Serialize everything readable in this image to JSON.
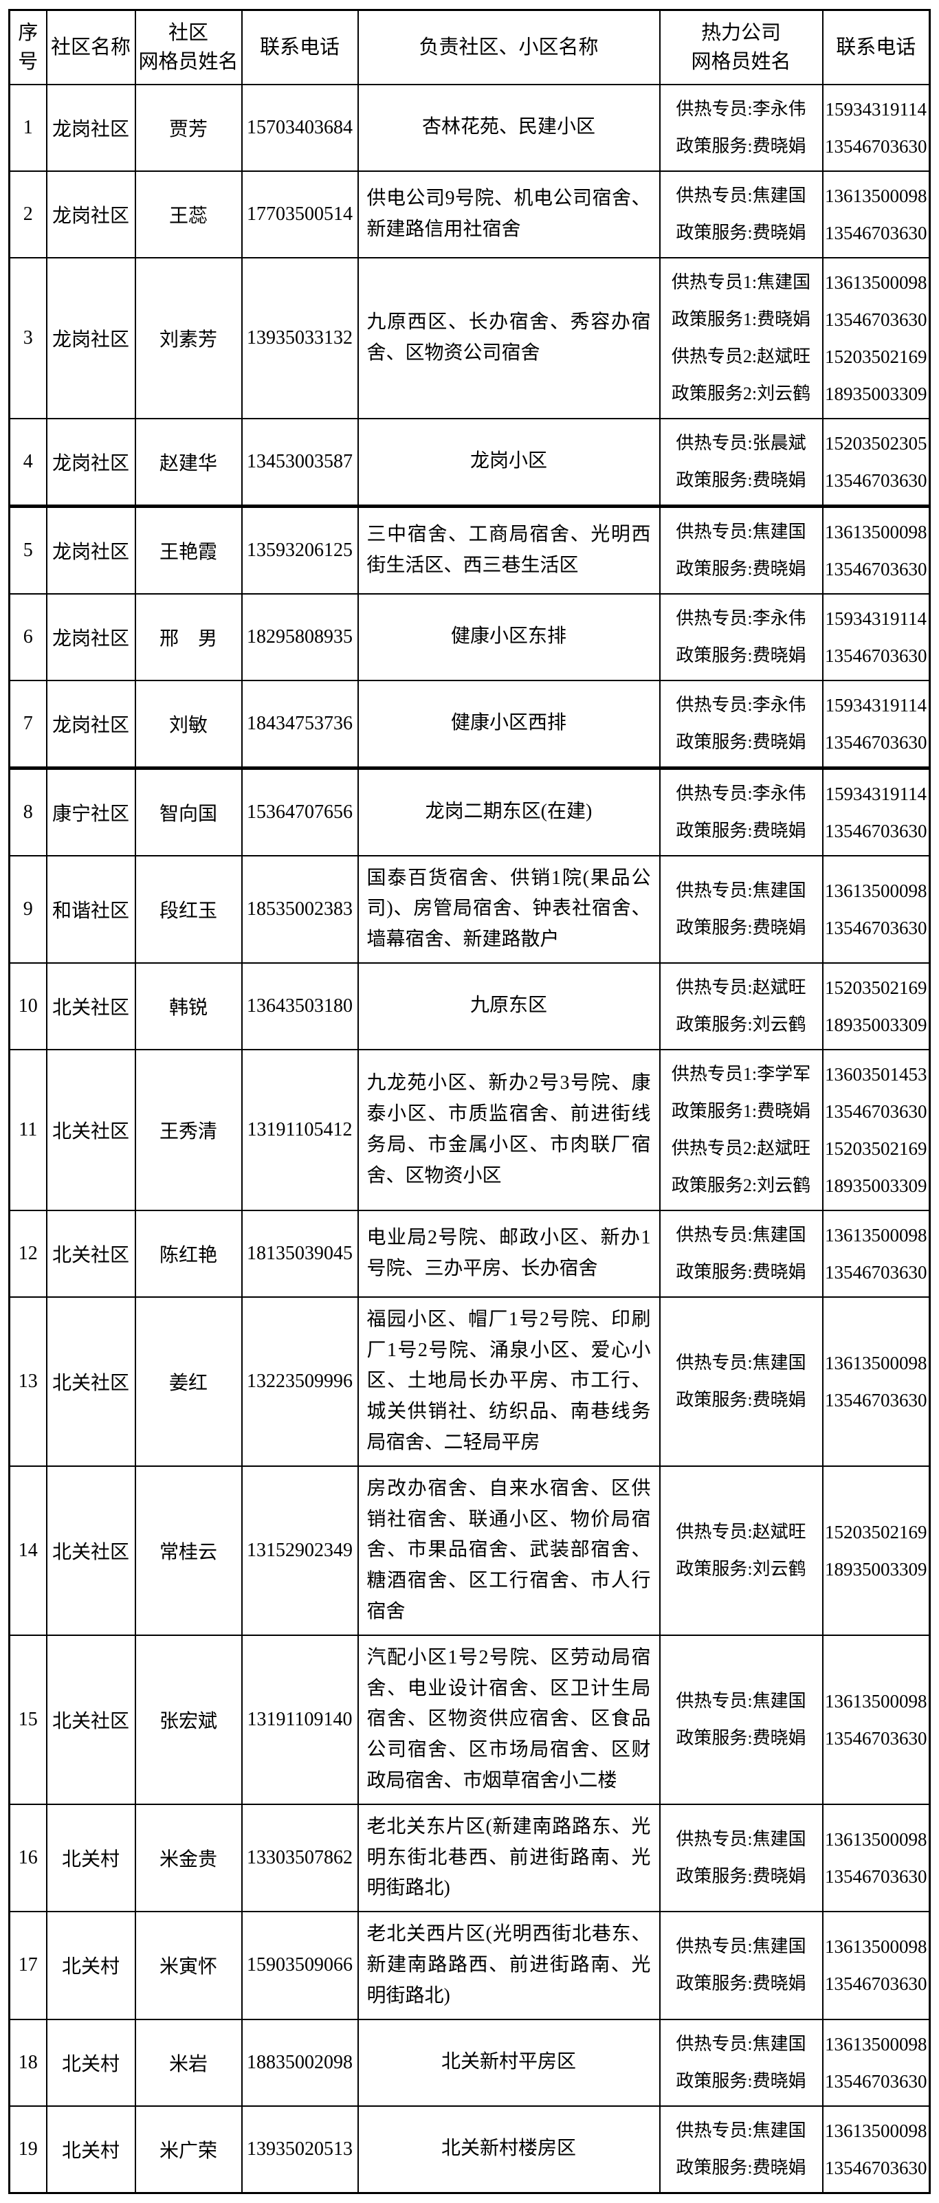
{
  "colors": {
    "background": "#ffffff",
    "border": "#000000",
    "text": "#000000"
  },
  "table": {
    "headers": [
      "序\n号",
      "社区名称",
      "社区\n网格员姓名",
      "联系电话",
      "负责社区、小区名称",
      "热力公司\n网格员姓名",
      "联系电话"
    ],
    "rows": [
      {
        "no": "1",
        "community": "龙岗社区",
        "worker": "贾芳",
        "phone": "15703403684",
        "areas": "杏林花苑、民建小区",
        "heating_staff": [
          "供热专员:李永伟",
          "政策服务:费晓娟"
        ],
        "heating_phones": [
          "15934319114",
          "13546703630"
        ],
        "thick_divider_after": false
      },
      {
        "no": "2",
        "community": "龙岗社区",
        "worker": "王蕊",
        "phone": "17703500514",
        "areas": "供电公司9号院、机电公司宿舍、新建路信用社宿舍",
        "heating_staff": [
          "供热专员:焦建国",
          "政策服务:费晓娟"
        ],
        "heating_phones": [
          "13613500098",
          "13546703630"
        ],
        "thick_divider_after": false
      },
      {
        "no": "3",
        "community": "龙岗社区",
        "worker": "刘素芳",
        "phone": "13935033132",
        "areas": "九原西区、长办宿舍、秀容办宿舍、区物资公司宿舍",
        "heating_staff": [
          "供热专员1:焦建国",
          "政策服务1:费晓娟",
          "供热专员2:赵斌旺",
          "政策服务2:刘云鹤"
        ],
        "heating_phones": [
          "13613500098",
          "13546703630",
          "15203502169",
          "18935003309"
        ],
        "thick_divider_after": false
      },
      {
        "no": "4",
        "community": "龙岗社区",
        "worker": "赵建华",
        "phone": "13453003587",
        "areas": "龙岗小区",
        "heating_staff": [
          "供热专员:张晨斌",
          "政策服务:费晓娟"
        ],
        "heating_phones": [
          "15203502305",
          "13546703630"
        ],
        "thick_divider_after": true
      },
      {
        "no": "5",
        "community": "龙岗社区",
        "worker": "王艳霞",
        "phone": "13593206125",
        "areas": "三中宿舍、工商局宿舍、光明西街生活区、西三巷生活区",
        "heating_staff": [
          "供热专员:焦建国",
          "政策服务:费晓娟"
        ],
        "heating_phones": [
          "13613500098",
          "13546703630"
        ],
        "thick_divider_after": false
      },
      {
        "no": "6",
        "community": "龙岗社区",
        "worker": "邢　男",
        "phone": "18295808935",
        "areas": "健康小区东排",
        "heating_staff": [
          "供热专员:李永伟",
          "政策服务:费晓娟"
        ],
        "heating_phones": [
          "15934319114",
          "13546703630"
        ],
        "thick_divider_after": false
      },
      {
        "no": "7",
        "community": "龙岗社区",
        "worker": "刘敏",
        "phone": "18434753736",
        "areas": "健康小区西排",
        "heating_staff": [
          "供热专员:李永伟",
          "政策服务:费晓娟"
        ],
        "heating_phones": [
          "15934319114",
          "13546703630"
        ],
        "thick_divider_after": true
      },
      {
        "no": "8",
        "community": "康宁社区",
        "worker": "智向国",
        "phone": "15364707656",
        "areas": "龙岗二期东区(在建)",
        "heating_staff": [
          "供热专员:李永伟",
          "政策服务:费晓娟"
        ],
        "heating_phones": [
          "15934319114",
          "13546703630"
        ],
        "thick_divider_after": false
      },
      {
        "no": "9",
        "community": "和谐社区",
        "worker": "段红玉",
        "phone": "18535002383",
        "areas": "国泰百货宿舍、供销1院(果品公司)、房管局宿舍、钟表社宿舍、墙幕宿舍、新建路散户",
        "heating_staff": [
          "供热专员:焦建国",
          "政策服务:费晓娟"
        ],
        "heating_phones": [
          "13613500098",
          "13546703630"
        ],
        "thick_divider_after": false
      },
      {
        "no": "10",
        "community": "北关社区",
        "worker": "韩锐",
        "phone": "13643503180",
        "areas": "九原东区",
        "heating_staff": [
          "供热专员:赵斌旺",
          "政策服务:刘云鹤"
        ],
        "heating_phones": [
          "15203502169",
          "18935003309"
        ],
        "thick_divider_after": false
      },
      {
        "no": "11",
        "community": "北关社区",
        "worker": "王秀清",
        "phone": "13191105412",
        "areas": "九龙苑小区、新办2号3号院、康泰小区、市质监宿舍、前进街线务局、市金属小区、市肉联厂宿舍、区物资小区",
        "heating_staff": [
          "供热专员1:李学军",
          "政策服务1:费晓娟",
          "供热专员2:赵斌旺",
          "政策服务2:刘云鹤"
        ],
        "heating_phones": [
          "13603501453",
          "13546703630",
          "15203502169",
          "18935003309"
        ],
        "thick_divider_after": false
      },
      {
        "no": "12",
        "community": "北关社区",
        "worker": "陈红艳",
        "phone": "18135039045",
        "areas": "电业局2号院、邮政小区、新办1号院、三办平房、长办宿舍",
        "heating_staff": [
          "供热专员:焦建国",
          "政策服务:费晓娟"
        ],
        "heating_phones": [
          "13613500098",
          "13546703630"
        ],
        "thick_divider_after": false
      },
      {
        "no": "13",
        "community": "北关社区",
        "worker": "姜红",
        "phone": "13223509996",
        "areas": "福园小区、帽厂1号2号院、印刷厂1号2号院、涌泉小区、爱心小区、土地局长办平房、市工行、城关供销社、纺织品、南巷线务局宿舍、二轻局平房",
        "heating_staff": [
          "供热专员:焦建国",
          "政策服务:费晓娟"
        ],
        "heating_phones": [
          "13613500098",
          "13546703630"
        ],
        "thick_divider_after": false
      },
      {
        "no": "14",
        "community": "北关社区",
        "worker": "常桂云",
        "phone": "13152902349",
        "areas": "房改办宿舍、自来水宿舍、区供销社宿舍、联通小区、物价局宿舍、市果品宿舍、武装部宿舍、糖酒宿舍、区工行宿舍、市人行宿舍",
        "heating_staff": [
          "供热专员:赵斌旺",
          "政策服务:刘云鹤"
        ],
        "heating_phones": [
          "15203502169",
          "18935003309"
        ],
        "thick_divider_after": false
      },
      {
        "no": "15",
        "community": "北关社区",
        "worker": "张宏斌",
        "phone": "13191109140",
        "areas": "汽配小区1号2号院、区劳动局宿舍、电业设计宿舍、区卫计生局宿舍、区物资供应宿舍、区食品公司宿舍、区市场局宿舍、区财政局宿舍、市烟草宿舍小二楼",
        "heating_staff": [
          "供热专员:焦建国",
          "政策服务:费晓娟"
        ],
        "heating_phones": [
          "13613500098",
          "13546703630"
        ],
        "thick_divider_after": false
      },
      {
        "no": "16",
        "community": "北关村",
        "worker": "米金贵",
        "phone": "13303507862",
        "areas": "老北关东片区(新建南路路东、光明东街北巷西、前进街路南、光明街路北)",
        "heating_staff": [
          "供热专员:焦建国",
          "政策服务:费晓娟"
        ],
        "heating_phones": [
          "13613500098",
          "13546703630"
        ],
        "thick_divider_after": false
      },
      {
        "no": "17",
        "community": "北关村",
        "worker": "米寅怀",
        "phone": "15903509066",
        "areas": "老北关西片区(光明西街北巷东、新建南路路西、前进街路南、光明街路北)",
        "heating_staff": [
          "供热专员:焦建国",
          "政策服务:费晓娟"
        ],
        "heating_phones": [
          "13613500098",
          "13546703630"
        ],
        "thick_divider_after": false
      },
      {
        "no": "18",
        "community": "北关村",
        "worker": "米岩",
        "phone": "18835002098",
        "areas": "北关新村平房区",
        "heating_staff": [
          "供热专员:焦建国",
          "政策服务:费晓娟"
        ],
        "heating_phones": [
          "13613500098",
          "13546703630"
        ],
        "thick_divider_after": false
      },
      {
        "no": "19",
        "community": "北关村",
        "worker": "米广荣",
        "phone": "13935020513",
        "areas": "北关新村楼房区",
        "heating_staff": [
          "供热专员:焦建国",
          "政策服务:费晓娟"
        ],
        "heating_phones": [
          "13613500098",
          "13546703630"
        ],
        "thick_divider_after": false
      }
    ]
  }
}
